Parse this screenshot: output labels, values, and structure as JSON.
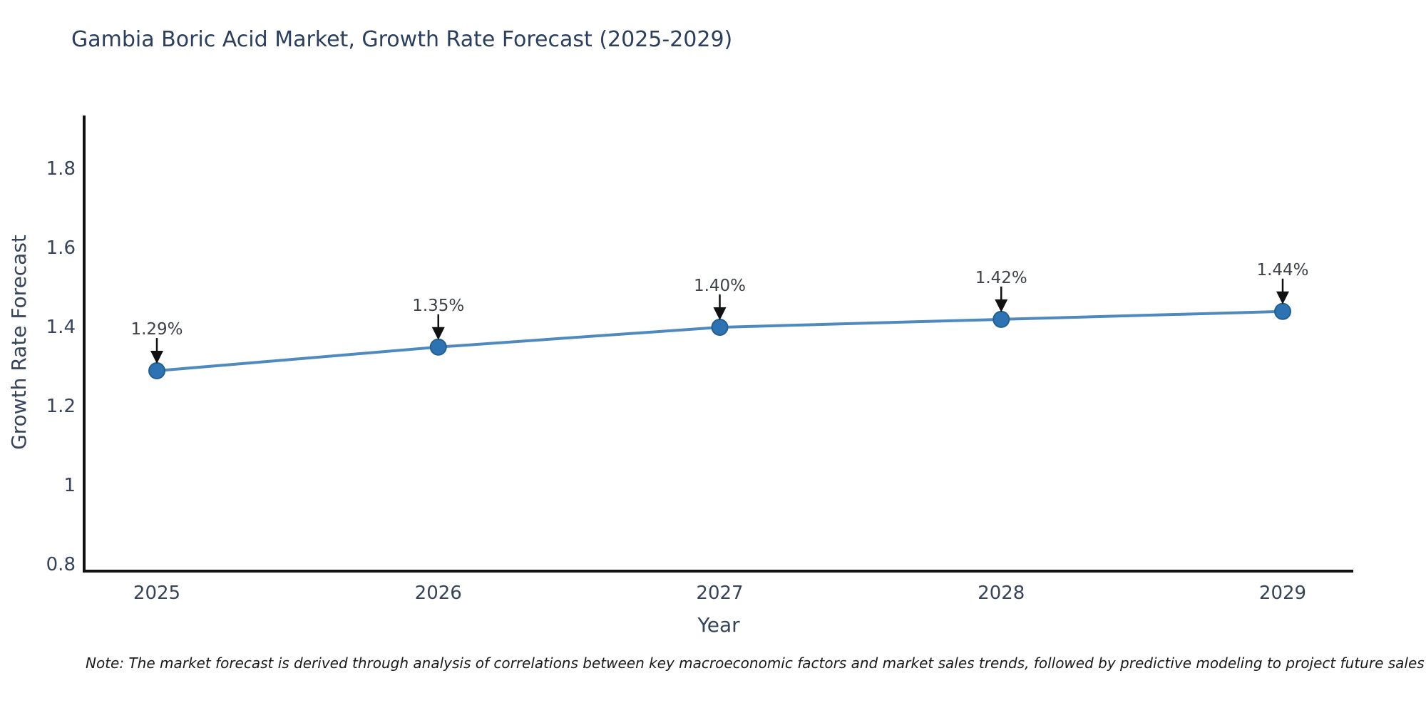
{
  "note": {
    "text": "Note: The market forecast is derived through analysis of correlations between key macroeconomic factors and market sales trends, followed by predictive modeling to project future sales"
  },
  "chart_data": {
    "type": "line",
    "title": "Gambia Boric Acid Market, Growth Rate Forecast (2025-2029)",
    "xlabel": "Year",
    "ylabel": "Growth Rate Forecast",
    "categories": [
      "2025",
      "2026",
      "2027",
      "2028",
      "2029"
    ],
    "values": [
      1.29,
      1.35,
      1.4,
      1.42,
      1.44
    ],
    "point_labels": [
      "1.29%",
      "1.35%",
      "1.40%",
      "1.42%",
      "1.44%"
    ],
    "y_ticks": [
      0.8,
      1.0,
      1.2,
      1.4,
      1.6,
      1.8
    ],
    "y_tick_labels": [
      "0.8",
      "1",
      "1.2",
      "1.4",
      "1.6",
      "1.8"
    ],
    "ylim": [
      0.78,
      1.95
    ],
    "grid": false,
    "legend": "none",
    "colors": {
      "line": "#4f8abf",
      "marker_fill": "#2d72b2",
      "marker_edge": "#23608f",
      "arrow": "#111111",
      "annotation_text": "#3d4148",
      "axis_line": "#111111",
      "tick_text": "#36435a",
      "title_text": "#2a3f5f"
    }
  }
}
